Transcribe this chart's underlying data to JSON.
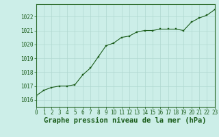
{
  "x": [
    0,
    1,
    2,
    3,
    4,
    5,
    6,
    7,
    8,
    9,
    10,
    11,
    12,
    13,
    14,
    15,
    16,
    17,
    18,
    19,
    20,
    21,
    22,
    23
  ],
  "y": [
    1016.3,
    1016.7,
    1016.9,
    1017.0,
    1017.0,
    1017.1,
    1017.8,
    1018.3,
    1019.1,
    1019.9,
    1020.1,
    1020.5,
    1020.6,
    1020.9,
    1021.0,
    1021.0,
    1021.1,
    1021.1,
    1021.1,
    1021.0,
    1021.6,
    1021.9,
    1022.1,
    1022.5
  ],
  "line_color": "#1a5c1a",
  "marker_color": "#1a5c1a",
  "bg_color": "#cceee8",
  "grid_color": "#b0d8d0",
  "xlabel": "Graphe pression niveau de la mer (hPa)",
  "ylim": [
    1015.5,
    1022.9
  ],
  "xlim": [
    0,
    23
  ],
  "yticks": [
    1016,
    1017,
    1018,
    1019,
    1020,
    1021,
    1022
  ],
  "xticks": [
    0,
    1,
    2,
    3,
    4,
    5,
    6,
    7,
    8,
    9,
    10,
    11,
    12,
    13,
    14,
    15,
    16,
    17,
    18,
    19,
    20,
    21,
    22,
    23
  ],
  "tick_fontsize": 5.5,
  "xlabel_fontsize": 7.5,
  "axis_color": "#1a5c1a",
  "spine_color": "#2a6a2a"
}
